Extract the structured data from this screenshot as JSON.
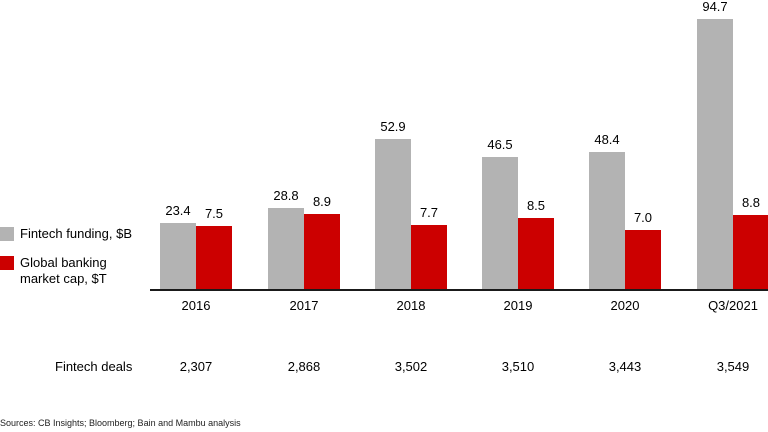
{
  "chart_data": {
    "type": "bar",
    "title": "",
    "xlabel": "",
    "ylabel": "",
    "categories": [
      "2016",
      "2017",
      "2018",
      "2019",
      "2020",
      "Q3/2021"
    ],
    "series": [
      {
        "name": "Fintech funding, $B",
        "color": "#b3b3b3",
        "values": [
          23.4,
          28.8,
          52.9,
          46.5,
          48.4,
          94.7
        ]
      },
      {
        "name": "Global banking market cap, $T",
        "color": "#cc0000",
        "values": [
          7.5,
          8.9,
          7.7,
          8.5,
          7.0,
          8.8
        ]
      }
    ],
    "value_labels": {
      "funding": [
        "23.4",
        "28.8",
        "52.9",
        "46.5",
        "48.4",
        "94.7"
      ],
      "market_cap": [
        "7.5",
        "8.9",
        "7.7",
        "8.5",
        "7.0",
        "8.8"
      ]
    },
    "grid": false,
    "legend_position": "left",
    "table_row": {
      "label": "Fintech deals",
      "values": [
        "2,307",
        "2,868",
        "3,502",
        "3,510",
        "3,443",
        "3,549"
      ]
    }
  },
  "legend": {
    "funding": "Fintech funding, $B",
    "market_cap_line1": "Global banking",
    "market_cap_line2": "market cap, $T"
  },
  "colors": {
    "funding": "#b3b3b3",
    "market_cap": "#cc0000"
  },
  "source": "Sources: CB Insights; Bloomberg; Bain and Mambu analysis"
}
